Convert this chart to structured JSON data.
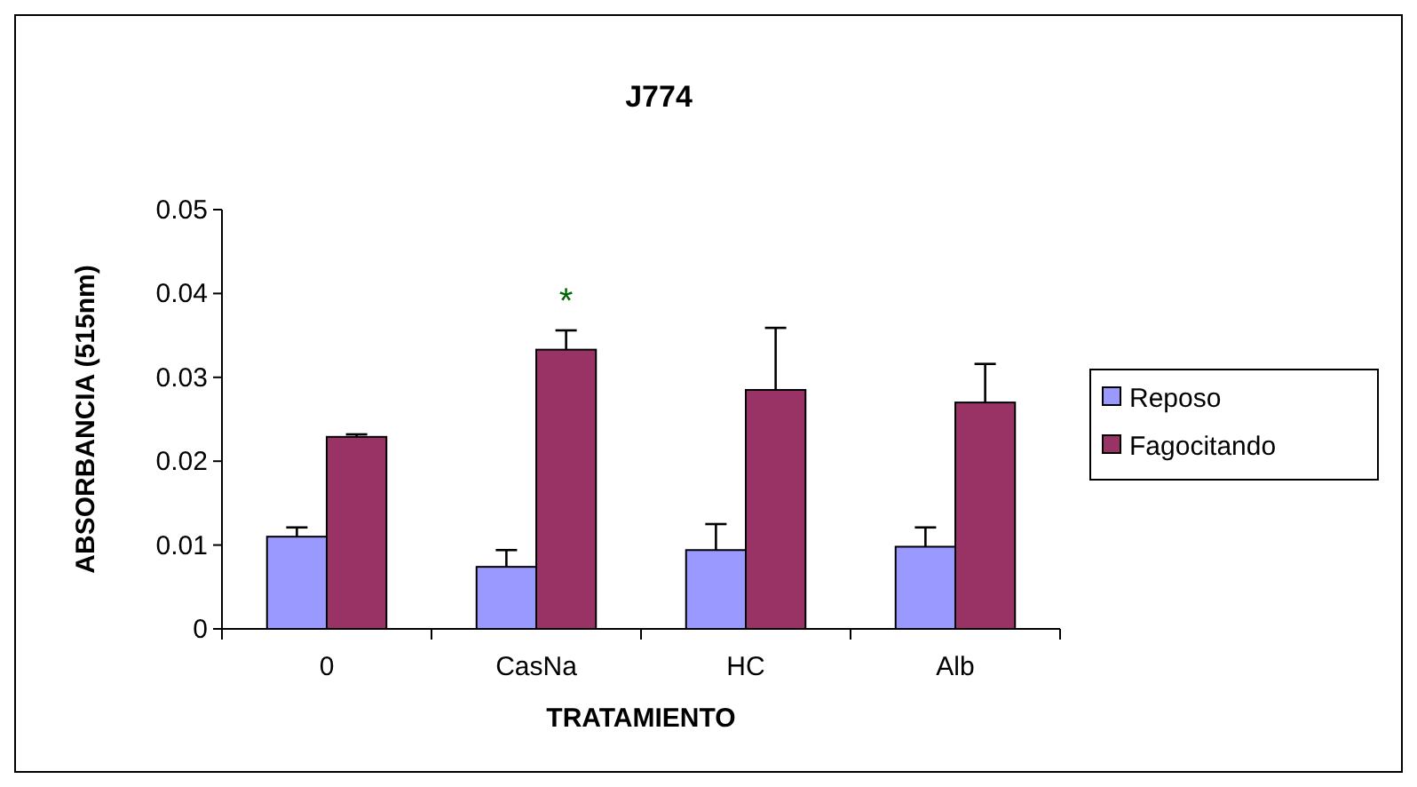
{
  "chart_data": {
    "type": "bar",
    "title": "J774",
    "xlabel": "TRATAMIENTO",
    "ylabel": "ABSORBANCIA (515nm)",
    "categories": [
      "0",
      "CasNa",
      "HC",
      "Alb"
    ],
    "series": [
      {
        "name": "Reposo",
        "color": "#9999ff",
        "values": [
          0.011,
          0.0074,
          0.0094,
          0.0098
        ],
        "errors": [
          [
            0.011,
            0.0121
          ],
          [
            0.0074,
            0.0094
          ],
          [
            0.0094,
            0.0125
          ],
          [
            0.0098,
            0.0121
          ]
        ]
      },
      {
        "name": "Fagocitando",
        "color": "#993366",
        "values": [
          0.0229,
          0.0333,
          0.0285,
          0.027
        ],
        "errors": [
          [
            0.0229,
            0.0232
          ],
          [
            0.0333,
            0.0356
          ],
          [
            0.0285,
            0.0359
          ],
          [
            0.027,
            0.0316
          ]
        ]
      }
    ],
    "ylim": [
      0,
      0.05
    ],
    "yticks": [
      0,
      0.01,
      0.02,
      0.03,
      0.04,
      0.05
    ],
    "legend": "right",
    "grid": false,
    "annotations": [
      "*"
    ]
  }
}
